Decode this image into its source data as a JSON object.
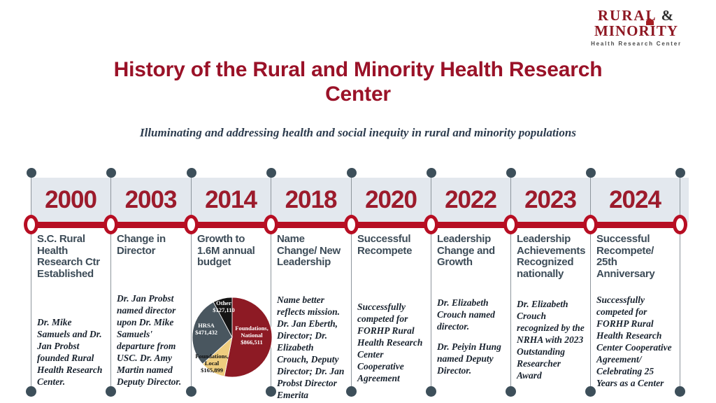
{
  "logo": {
    "word1": "Rural",
    "amp": "&",
    "word2": "Minority",
    "tagline": "Health Research Center"
  },
  "header": {
    "title": "History of the Rural and Minority Health Research Center",
    "subtitle": "Illuminating and addressing health and social inequity in rural and minority populations"
  },
  "colors": {
    "accent_red": "#b70e23",
    "maroon_text": "#9a1228",
    "slate": "#3d4f5a",
    "band_bg": "#e3e8ee",
    "body_text": "#18222e"
  },
  "timeline": {
    "entries": [
      {
        "year": "2000",
        "heading": "S.C. Rural Health Research Ctr Established",
        "body": "Dr. Mike Samuels and Dr. Jan Probst founded Rural Health Research Center."
      },
      {
        "year": "2003",
        "heading": "Change in Director",
        "body": "Dr. Jan Probst named director upon Dr. Mike Samuels' departure from USC. Dr. Amy Martin named Deputy Director."
      },
      {
        "year": "2014",
        "heading": "Growth to 1.6M annual budget",
        "body": ""
      },
      {
        "year": "2018",
        "heading": "Name Change/ New Leadership",
        "body": "Name better reflects mission. Dr. Jan Eberth, Director; Dr. Elizabeth Crouch, Deputy Director; Dr. Jan Probst Director Emerita"
      },
      {
        "year": "2020",
        "heading": "Successful Recompete",
        "body": "Successfully competed for FORHP Rural Health Research Center Cooperative Agreement"
      },
      {
        "year": "2022",
        "heading": "Leadership Change and Growth",
        "body": "Dr. Elizabeth Crouch named director.",
        "body2": "Dr. Peiyin Hung named Deputy Director."
      },
      {
        "year": "2023",
        "heading": "Leadership Achievements Recognized nationally",
        "body": "Dr. Elizabeth Crouch recognized by the NRHA with 2023 Outstanding Researcher Award"
      },
      {
        "year": "2024",
        "heading": "Successful Recompete/ 25th Anniversary",
        "body": "Successfully competed for FORHP Rural Health Research Center Cooperative Agreement/ Celebrating 25 Years as a Center"
      }
    ]
  },
  "chart_data": {
    "type": "pie",
    "title": "2014 annual budget (~$1.6M)",
    "direction": "clockwise",
    "start_angle_deg": 0,
    "slices": [
      {
        "label": "Foundations, National",
        "value": 866511,
        "display": "$866,511",
        "color": "#8d1a24"
      },
      {
        "label": "Foundations, Local",
        "value": 165899,
        "display": "$165,899",
        "color": "#eecd7f"
      },
      {
        "label": "HRSA",
        "value": 471432,
        "display": "$471,432",
        "color": "#49565f"
      },
      {
        "label": "Other",
        "value": 127110,
        "display": "$127,110",
        "color": "#141414"
      }
    ]
  }
}
